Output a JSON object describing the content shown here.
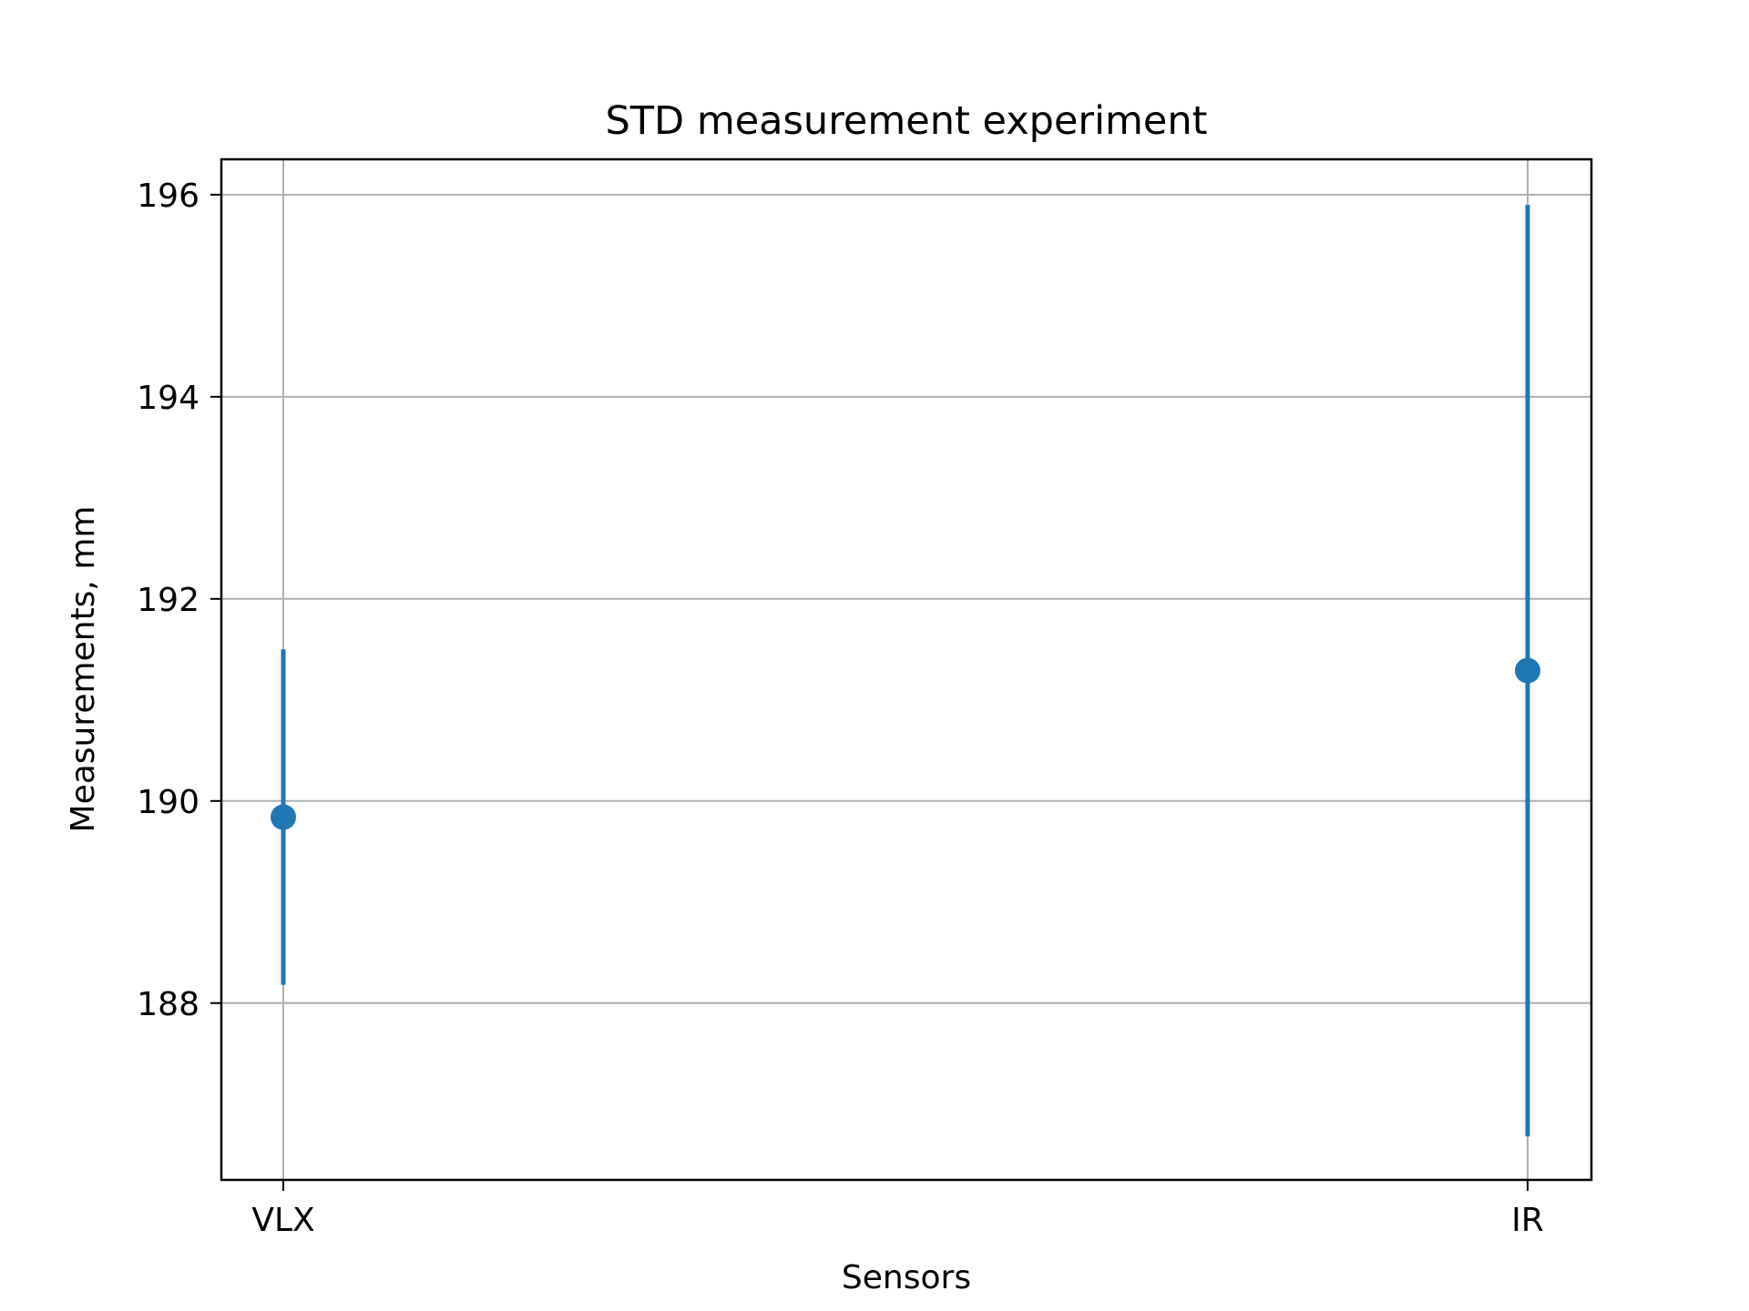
{
  "chart_data": {
    "type": "errorbar",
    "title": "STD measurement experiment",
    "xlabel": "Sensors",
    "ylabel": "Measurements, mm",
    "categories": [
      "VLX",
      "IR"
    ],
    "series": [
      {
        "values": [
          189.84,
          191.29
        ],
        "errors": [
          1.66,
          4.61
        ],
        "color": "#1f77b4"
      }
    ],
    "ylim": [
      186.25,
      196.35
    ],
    "yticks": [
      188,
      190,
      192,
      194,
      196
    ],
    "grid": true
  }
}
